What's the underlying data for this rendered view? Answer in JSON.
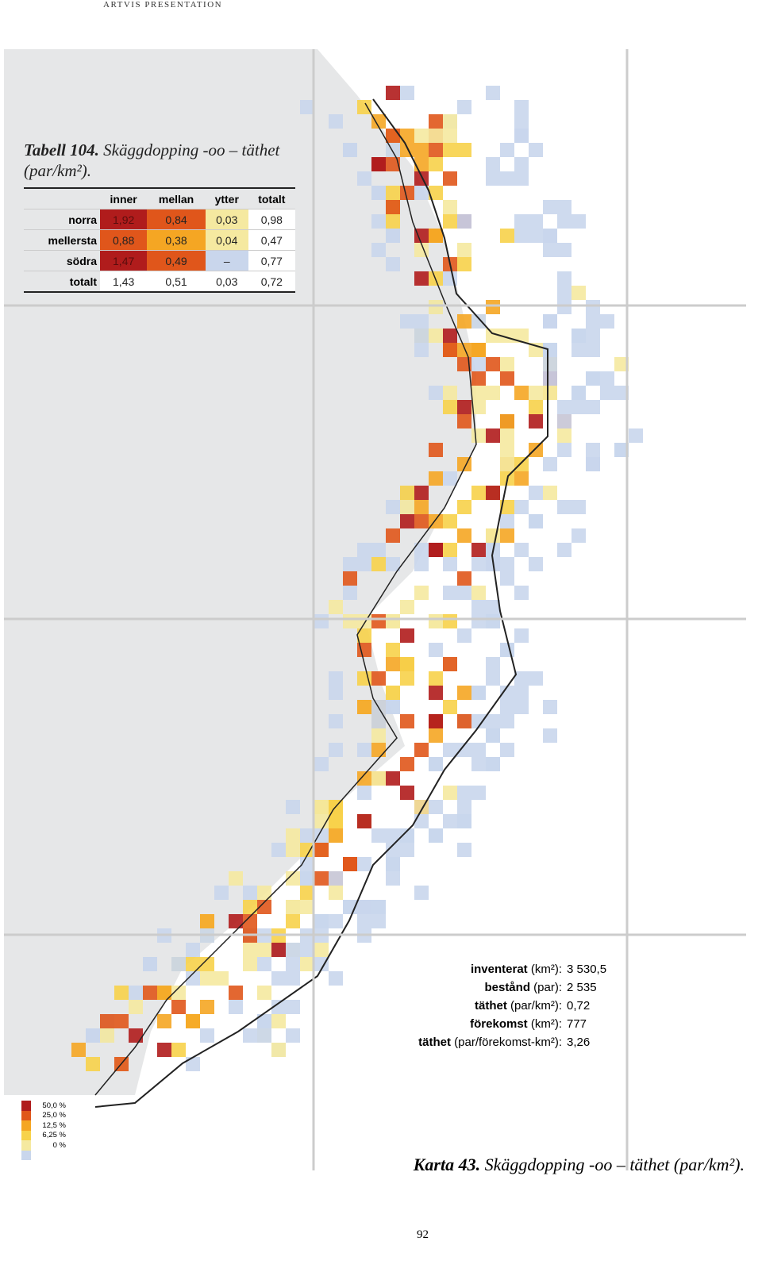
{
  "header": {
    "title": "ARTVIS PRESENTATION"
  },
  "table": {
    "label": "Tabell 104.",
    "title": "Skäggdopping -oo – täthet (par/km²).",
    "columns": [
      "inner",
      "mellan",
      "ytter",
      "totalt"
    ],
    "rows": [
      {
        "label": "norra",
        "cells": [
          "1,92",
          "0,84",
          "0,03",
          "0,98"
        ],
        "colors": [
          "#b01c1c",
          "#e0561b",
          "#f5e9a0",
          "#ffffff"
        ]
      },
      {
        "label": "mellersta",
        "cells": [
          "0,88",
          "0,38",
          "0,04",
          "0,47"
        ],
        "colors": [
          "#e0561b",
          "#f5a623",
          "#f5e9a0",
          "#ffffff"
        ]
      },
      {
        "label": "södra",
        "cells": [
          "1,47",
          "0,49",
          "–",
          "0,77"
        ],
        "colors": [
          "#b01c1c",
          "#e0561b",
          "#c9d6ec",
          "#ffffff"
        ]
      },
      {
        "label": "totalt",
        "cells": [
          "1,43",
          "0,51",
          "0,03",
          "0,72"
        ],
        "colors": [
          "#ffffff",
          "#ffffff",
          "#ffffff",
          "#ffffff"
        ]
      }
    ]
  },
  "stats": [
    {
      "term": "inventerat",
      "unit": "(km²):",
      "value": "3 530,5"
    },
    {
      "term": "bestånd",
      "unit": "(par):",
      "value": "2 535"
    },
    {
      "term": "täthet",
      "unit": "(par/km²):",
      "value": "0,72"
    },
    {
      "term": "förekomst",
      "unit": "(km²):",
      "value": "777"
    },
    {
      "term": "täthet",
      "unit": "(par/förekomst-km²):",
      "value": "3,26"
    }
  ],
  "legend": {
    "labels": [
      "50,0 %",
      "25,0 %",
      "12,5 %",
      "6,25 %",
      "0 %"
    ],
    "colors": [
      "#b01c1c",
      "#e0561b",
      "#f5a623",
      "#f7d24a",
      "#f5e9a0",
      "#c9d6ec"
    ]
  },
  "caption": {
    "label": "Karta 43.",
    "text": "Skäggdopping -oo – täthet (par/km²)."
  },
  "page_number": "92"
}
